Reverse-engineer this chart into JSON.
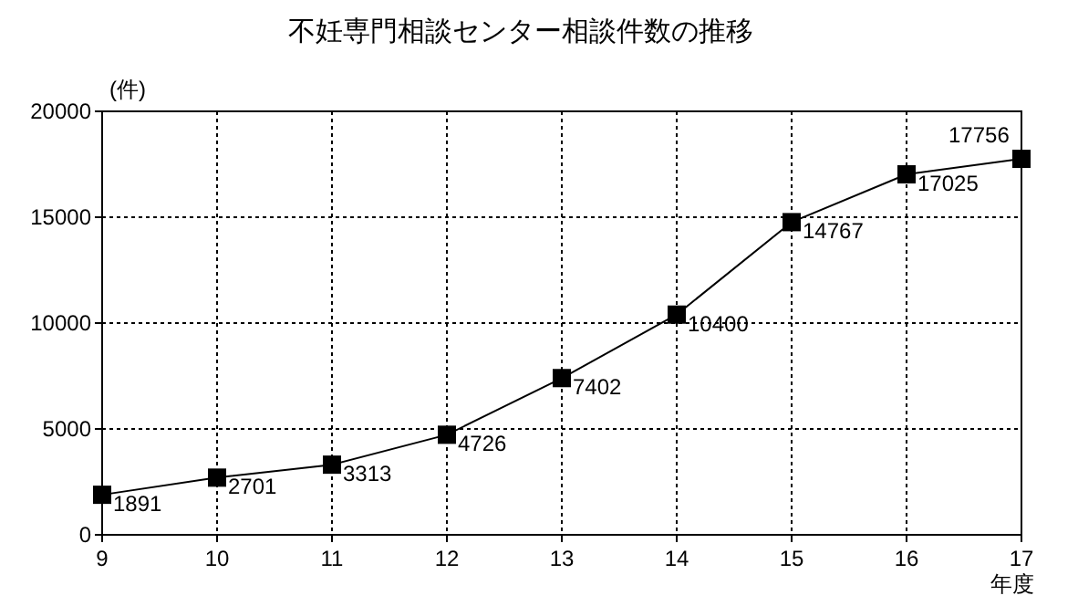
{
  "chart_data": {
    "type": "line",
    "title": "不妊専門相談センター相談件数の推移",
    "ylabel": "(件)",
    "xlabel": "年度",
    "x": [
      9,
      10,
      11,
      12,
      13,
      14,
      15,
      16,
      17
    ],
    "series": [
      {
        "color": "#000000",
        "values": [
          1891,
          2701,
          3313,
          4726,
          7402,
          10400,
          14767,
          17025,
          17756
        ]
      }
    ],
    "xlim": [
      9,
      17
    ],
    "xticks": [
      9,
      10,
      11,
      12,
      13,
      14,
      15,
      16,
      17
    ],
    "ylim": [
      0,
      20000
    ],
    "yticks": [
      0,
      5000,
      10000,
      15000,
      20000
    ],
    "grid": true,
    "marker": "square",
    "line_style": "solid",
    "data_labels": true
  }
}
